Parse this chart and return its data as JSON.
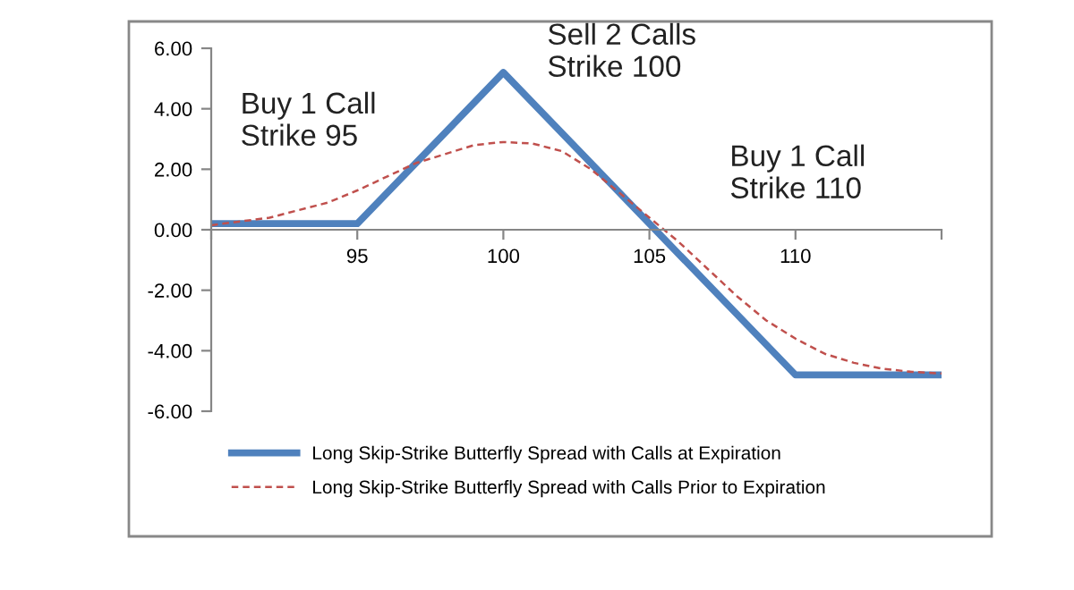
{
  "chart_data": {
    "type": "line",
    "series": [
      {
        "name": "Long Skip-Strike Butterfly Spread with Calls at Expiration",
        "color": "#4f81bd",
        "line_style": "solid",
        "x": [
          90,
          95,
          100,
          110,
          115
        ],
        "values": [
          0.2,
          0.2,
          5.2,
          -4.8,
          -4.8
        ]
      },
      {
        "name": "Long Skip-Strike Butterfly Spread with Calls Prior to Expiration",
        "color": "#c0504d",
        "line_style": "dashed",
        "x": [
          90,
          92,
          94,
          95,
          97,
          99,
          100,
          101,
          102,
          103,
          104,
          105,
          106,
          107,
          108,
          109,
          110,
          111,
          112,
          113,
          114,
          115
        ],
        "values": [
          0.15,
          0.4,
          0.9,
          1.3,
          2.2,
          2.8,
          2.9,
          2.85,
          2.6,
          2.0,
          1.2,
          0.4,
          -0.4,
          -1.3,
          -2.2,
          -3.0,
          -3.6,
          -4.1,
          -4.4,
          -4.6,
          -4.7,
          -4.75
        ]
      }
    ],
    "xlim": [
      90,
      115
    ],
    "xticks": [
      {
        "value": 90,
        "label": null
      },
      95,
      100,
      105,
      110,
      {
        "value": 115,
        "label": null
      }
    ],
    "ylim": [
      -6,
      6
    ],
    "yticks": [
      {
        "value": -6,
        "label": "-6.00"
      },
      {
        "value": -4,
        "label": "-4.00"
      },
      {
        "value": -2,
        "label": "-2.00"
      },
      {
        "value": 0,
        "label": "0.00"
      },
      {
        "value": 2,
        "label": "2.00"
      },
      {
        "value": 4,
        "label": "4.00"
      },
      {
        "value": 6,
        "label": "6.00"
      }
    ],
    "annotations": [
      "Buy 1 Call\nStrike 95",
      "Sell 2 Calls\nStrike 100",
      "Buy 1 Call\nStrike 110"
    ],
    "legend": "bottom",
    "grid": false
  }
}
